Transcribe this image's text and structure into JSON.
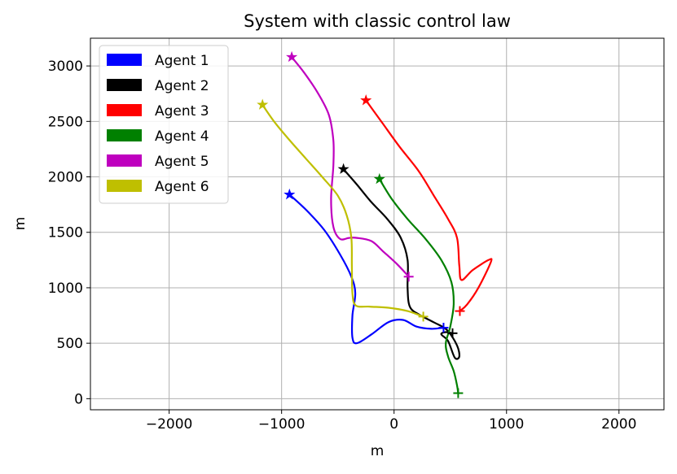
{
  "chart_data": {
    "type": "line",
    "title": "System with classic control law",
    "xlabel": "m",
    "ylabel": "m",
    "xlim": [
      -2700,
      2400
    ],
    "ylim": [
      -100,
      3250
    ],
    "xticks": [
      -2000,
      -1000,
      0,
      1000,
      2000
    ],
    "yticks": [
      0,
      500,
      1000,
      1500,
      2000,
      2500,
      3000
    ],
    "xtick_labels": [
      "−2000",
      "−1000",
      "0",
      "1000",
      "2000"
    ],
    "ytick_labels": [
      "0",
      "500",
      "1000",
      "1500",
      "2000",
      "2500",
      "3000"
    ],
    "grid": true,
    "legend_position": "top-left",
    "start_marker": "star",
    "end_marker": "plus",
    "series": [
      {
        "name": "Agent 1",
        "color": "#0000ff",
        "x": [
          -930,
          -780,
          -620,
          -480,
          -380,
          -345,
          -370,
          -370,
          -330,
          -200,
          -50,
          80,
          200,
          330,
          440
        ],
        "y": [
          1840,
          1700,
          1520,
          1300,
          1100,
          950,
          750,
          550,
          500,
          580,
          690,
          710,
          650,
          630,
          640
        ]
      },
      {
        "name": "Agent 2",
        "color": "#000000",
        "x": [
          -450,
          -330,
          -200,
          -60,
          60,
          120,
          120,
          140,
          220,
          350,
          470,
          560,
          580,
          540,
          480,
          420,
          460,
          520
        ],
        "y": [
          2070,
          1930,
          1770,
          1620,
          1450,
          1250,
          1000,
          830,
          760,
          690,
          620,
          480,
          380,
          370,
          520,
          580,
          600,
          590
        ]
      },
      {
        "name": "Agent 3",
        "color": "#ff0000",
        "x": [
          -250,
          -100,
          50,
          220,
          360,
          480,
          560,
          580,
          600,
          700,
          840,
          860,
          750,
          650,
          585
        ],
        "y": [
          2690,
          2480,
          2270,
          2050,
          1820,
          1620,
          1450,
          1200,
          1070,
          1160,
          1250,
          1230,
          1000,
          850,
          790
        ]
      },
      {
        "name": "Agent 4",
        "color": "#008000",
        "x": [
          -130,
          -20,
          120,
          280,
          420,
          510,
          530,
          500,
          460,
          480,
          530,
          560,
          570
        ],
        "y": [
          1980,
          1800,
          1620,
          1440,
          1250,
          1050,
          850,
          650,
          500,
          380,
          250,
          120,
          50
        ]
      },
      {
        "name": "Agent 5",
        "color": "#bf00bf",
        "x": [
          -910,
          -800,
          -680,
          -580,
          -540,
          -540,
          -560,
          -540,
          -480,
          -400,
          -330,
          -200,
          -100,
          30,
          130
        ],
        "y": [
          3080,
          2940,
          2760,
          2560,
          2330,
          2100,
          1800,
          1550,
          1440,
          1450,
          1450,
          1420,
          1330,
          1210,
          1100
        ]
      },
      {
        "name": "Agent 6",
        "color": "#bfbf00",
        "x": [
          -1170,
          -1060,
          -920,
          -780,
          -640,
          -500,
          -420,
          -380,
          -375,
          -370,
          -340,
          -220,
          -50,
          120,
          260
        ],
        "y": [
          2650,
          2490,
          2320,
          2160,
          2000,
          1830,
          1650,
          1450,
          1200,
          950,
          840,
          830,
          820,
          790,
          740
        ]
      }
    ]
  }
}
